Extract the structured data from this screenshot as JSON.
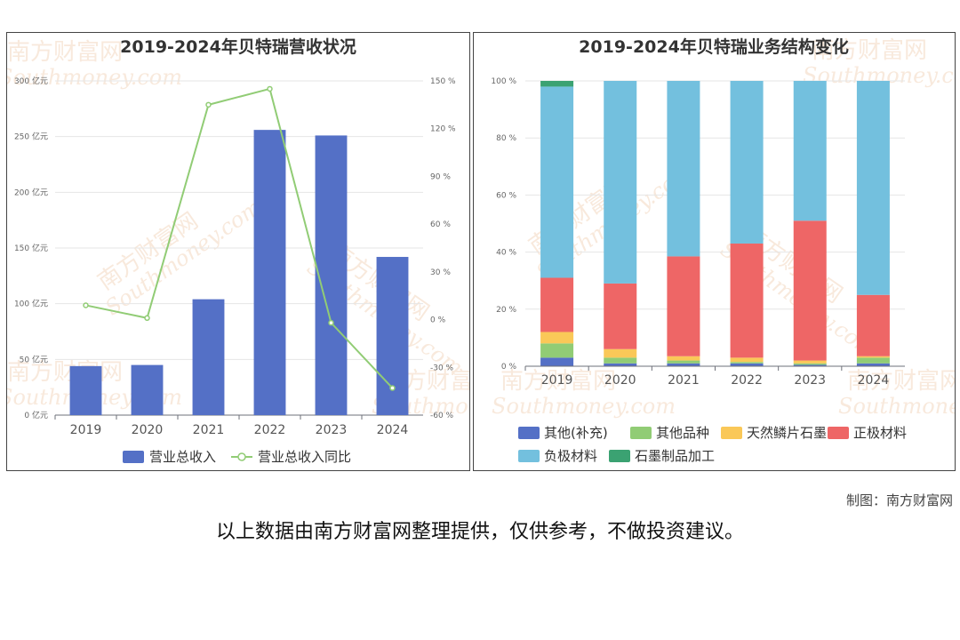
{
  "credit": "制图：南方财富网",
  "disclaimer": "以上数据由南方财富网整理提供，仅供参考，不做投资建议。",
  "watermark": {
    "text": "南方财富网",
    "subtext": "Southmoney.com",
    "color": "#f3d7bf"
  },
  "chart_data": [
    {
      "type": "bar",
      "title": "2019-2024年贝特瑞营收状况",
      "categories": [
        "2019",
        "2020",
        "2021",
        "2022",
        "2023",
        "2024"
      ],
      "series": [
        {
          "name": "营业总收入",
          "kind": "bar",
          "axis": "left",
          "color": "#5470c6",
          "values": [
            44,
            45,
            104,
            256,
            251,
            142
          ]
        },
        {
          "name": "营业总收入同比",
          "kind": "line",
          "axis": "right",
          "color": "#91cc75",
          "values": [
            9,
            1,
            135,
            145,
            -2,
            -43
          ]
        }
      ],
      "y_left": {
        "min": 0,
        "max": 300,
        "step": 50,
        "unit": "亿元",
        "ticks": [
          "0 亿元",
          "50 亿元",
          "100 亿元",
          "150 亿元",
          "200 亿元",
          "250 亿元",
          "300 亿元"
        ]
      },
      "y_right": {
        "min": -60,
        "max": 150,
        "step": 30,
        "unit": "%",
        "ticks": [
          "-60 %",
          "-30 %",
          "0 %",
          "30 %",
          "60 %",
          "90 %",
          "120 %",
          "150 %"
        ]
      },
      "legend": "bottom",
      "grid": true
    },
    {
      "type": "bar",
      "stacked": true,
      "title": "2019-2024年贝特瑞业务结构变化",
      "categories": [
        "2019",
        "2020",
        "2021",
        "2022",
        "2023",
        "2024"
      ],
      "series": [
        {
          "name": "其他(补充)",
          "color": "#5470c6",
          "values": [
            3,
            1,
            1,
            1,
            0.5,
            1
          ]
        },
        {
          "name": "其他品种",
          "color": "#91cc75",
          "values": [
            5,
            2,
            1,
            0.5,
            0.5,
            2
          ]
        },
        {
          "name": "天然鳞片石墨",
          "color": "#fac858",
          "values": [
            4,
            3,
            1.5,
            1.5,
            1,
            0.5
          ]
        },
        {
          "name": "正极材料",
          "color": "#ee6666",
          "values": [
            19,
            23,
            35,
            40,
            49,
            21.5
          ]
        },
        {
          "name": "负极材料",
          "color": "#73c0de",
          "values": [
            67,
            71,
            61.5,
            57,
            49,
            75
          ]
        },
        {
          "name": "石墨制品加工",
          "color": "#3ba272",
          "values": [
            2,
            0,
            0,
            0,
            0,
            0
          ]
        }
      ],
      "y": {
        "min": 0,
        "max": 100,
        "step": 20,
        "ticks": [
          "0 %",
          "20 %",
          "40 %",
          "60 %",
          "80 %",
          "100 %"
        ]
      },
      "legend": "bottom",
      "grid": true
    }
  ]
}
